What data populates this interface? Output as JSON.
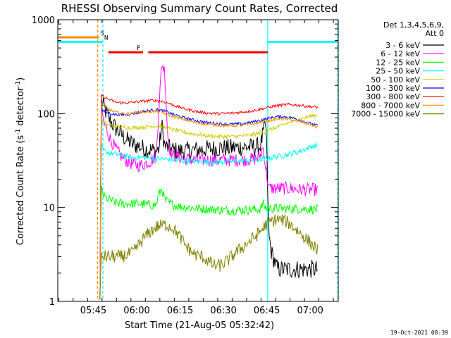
{
  "chart_data": {
    "type": "line",
    "title": "RHESSI Observing Summary Count Rates, Corrected",
    "xlabel": "Start Time (21-Aug-05 05:32:42)",
    "ylabel_main": "Corrected Count Rate (s",
    "ylabel_sup1": "-1",
    "ylabel_mid": " detector",
    "ylabel_sup2": "-1",
    "ylabel_end": ")",
    "yscale": "log",
    "ylim": [
      1,
      1000
    ],
    "xlim_minutes": [
      0,
      97
    ],
    "x_ticks": [
      {
        "label": "05:45",
        "min": 12.3
      },
      {
        "label": "06:00",
        "min": 27.3
      },
      {
        "label": "06:15",
        "min": 42.3
      },
      {
        "label": "06:30",
        "min": 57.3
      },
      {
        "label": "06:45",
        "min": 72.3
      },
      {
        "label": "07:00",
        "min": 87.3
      }
    ],
    "y_ticks": [
      {
        "label": "1",
        "value": 1
      },
      {
        "label": "10",
        "value": 10
      },
      {
        "label": "100",
        "value": 100
      },
      {
        "label": "1000",
        "value": 1000
      }
    ],
    "legend": {
      "header1": "Det 1,3,4,5,6,9,",
      "header2": "Att 0",
      "placement": "right"
    },
    "series": [
      {
        "name": "3 - 6 keV",
        "color": "#000000",
        "points": [
          [
            14.6,
            1.05
          ],
          [
            15,
            140
          ],
          [
            16,
            115
          ],
          [
            18,
            85
          ],
          [
            20,
            70
          ],
          [
            22,
            60
          ],
          [
            24,
            52
          ],
          [
            26,
            47
          ],
          [
            28,
            45
          ],
          [
            30,
            42
          ],
          [
            32,
            41
          ],
          [
            34,
            40
          ],
          [
            35,
            42
          ],
          [
            36,
            75
          ],
          [
            37,
            45
          ],
          [
            39,
            42
          ],
          [
            41,
            40
          ],
          [
            44,
            40
          ],
          [
            48,
            41
          ],
          [
            52,
            42
          ],
          [
            56,
            43
          ],
          [
            60,
            43
          ],
          [
            64,
            44
          ],
          [
            68,
            44
          ],
          [
            70,
            45
          ],
          [
            71,
            60
          ],
          [
            72,
            80
          ],
          [
            73,
            5
          ],
          [
            74,
            3.2
          ],
          [
            76,
            2.2
          ],
          [
            80,
            2.2
          ],
          [
            86,
            2.2
          ],
          [
            90,
            2.2
          ]
        ]
      },
      {
        "name": "6 - 12 keV",
        "color": "#ff00ff",
        "points": [
          [
            14.6,
            1.05
          ],
          [
            15,
            120
          ],
          [
            16,
            80
          ],
          [
            18,
            55
          ],
          [
            20,
            42
          ],
          [
            22,
            35
          ],
          [
            24,
            31
          ],
          [
            26,
            29
          ],
          [
            28,
            28
          ],
          [
            30,
            29
          ],
          [
            32,
            31
          ],
          [
            34,
            35
          ],
          [
            35,
            120
          ],
          [
            36,
            350
          ],
          [
            37,
            280
          ],
          [
            38,
            60
          ],
          [
            39,
            38
          ],
          [
            41,
            35
          ],
          [
            44,
            33
          ],
          [
            48,
            32
          ],
          [
            52,
            32
          ],
          [
            56,
            32
          ],
          [
            60,
            32
          ],
          [
            64,
            32
          ],
          [
            68,
            33
          ],
          [
            70,
            35
          ],
          [
            71,
            45
          ],
          [
            72,
            25
          ],
          [
            73,
            16
          ],
          [
            76,
            16
          ],
          [
            80,
            16
          ],
          [
            84,
            15.5
          ],
          [
            88,
            15.5
          ],
          [
            90,
            15.5
          ]
        ]
      },
      {
        "name": "12 - 25 keV",
        "color": "#00ff00",
        "points": [
          [
            14.6,
            1.05
          ],
          [
            15,
            16
          ],
          [
            16,
            13
          ],
          [
            18,
            12
          ],
          [
            20,
            11.2
          ],
          [
            22,
            11
          ],
          [
            24,
            11
          ],
          [
            26,
            11
          ],
          [
            28,
            11
          ],
          [
            30,
            10.8
          ],
          [
            32,
            10.6
          ],
          [
            34,
            10.6
          ],
          [
            35,
            14
          ],
          [
            36,
            16
          ],
          [
            37,
            12
          ],
          [
            39,
            11
          ],
          [
            41,
            10.4
          ],
          [
            44,
            10.1
          ],
          [
            48,
            9.8
          ],
          [
            52,
            9.6
          ],
          [
            56,
            9.4
          ],
          [
            60,
            9.3
          ],
          [
            64,
            9.4
          ],
          [
            68,
            9.5
          ],
          [
            70,
            9.6
          ],
          [
            71,
            11
          ],
          [
            72,
            9.8
          ],
          [
            76,
            9.8
          ],
          [
            80,
            9.7
          ],
          [
            84,
            9.7
          ],
          [
            88,
            9.6
          ],
          [
            90,
            9.6
          ]
        ]
      },
      {
        "name": "25 - 50 keV",
        "color": "#00ffff",
        "points": [
          [
            14.6,
            1.05
          ],
          [
            15,
            45
          ],
          [
            16,
            40
          ],
          [
            18,
            38
          ],
          [
            20,
            37
          ],
          [
            22,
            36
          ],
          [
            24,
            35
          ],
          [
            26,
            34
          ],
          [
            28,
            34
          ],
          [
            30,
            34
          ],
          [
            32,
            33.5
          ],
          [
            34,
            33
          ],
          [
            36,
            33
          ],
          [
            38,
            32.5
          ],
          [
            40,
            32
          ],
          [
            44,
            31.5
          ],
          [
            48,
            31
          ],
          [
            52,
            30.5
          ],
          [
            56,
            30.5
          ],
          [
            60,
            31
          ],
          [
            64,
            31.5
          ],
          [
            68,
            32
          ],
          [
            72,
            33
          ],
          [
            76,
            35
          ],
          [
            80,
            37
          ],
          [
            84,
            40
          ],
          [
            88,
            45
          ],
          [
            90,
            46
          ]
        ]
      },
      {
        "name": "50 - 100 keV",
        "color": "#cccc00",
        "points": [
          [
            14.6,
            1.05
          ],
          [
            15,
            85
          ],
          [
            16,
            80
          ],
          [
            18,
            76
          ],
          [
            20,
            74
          ],
          [
            22,
            72
          ],
          [
            24,
            71
          ],
          [
            26,
            71
          ],
          [
            28,
            71
          ],
          [
            30,
            72
          ],
          [
            32,
            73
          ],
          [
            34,
            74
          ],
          [
            36,
            73
          ],
          [
            38,
            70
          ],
          [
            40,
            67
          ],
          [
            44,
            63
          ],
          [
            48,
            60
          ],
          [
            52,
            58
          ],
          [
            56,
            57
          ],
          [
            60,
            57
          ],
          [
            64,
            58
          ],
          [
            68,
            60
          ],
          [
            72,
            65
          ],
          [
            76,
            72
          ],
          [
            80,
            80
          ],
          [
            84,
            88
          ],
          [
            88,
            95
          ],
          [
            90,
            97
          ]
        ]
      },
      {
        "name": "100 - 300 keV",
        "color": "#0000ff",
        "points": [
          [
            14.6,
            1.05
          ],
          [
            15,
            110
          ],
          [
            16,
            105
          ],
          [
            18,
            100
          ],
          [
            20,
            98
          ],
          [
            22,
            97
          ],
          [
            24,
            98
          ],
          [
            26,
            100
          ],
          [
            28,
            103
          ],
          [
            30,
            106
          ],
          [
            32,
            108
          ],
          [
            34,
            110
          ],
          [
            36,
            108
          ],
          [
            38,
            104
          ],
          [
            40,
            98
          ],
          [
            44,
            90
          ],
          [
            48,
            84
          ],
          [
            52,
            80
          ],
          [
            56,
            78
          ],
          [
            60,
            77
          ],
          [
            64,
            78
          ],
          [
            68,
            82
          ],
          [
            72,
            88
          ],
          [
            76,
            93
          ],
          [
            80,
            92
          ],
          [
            84,
            85
          ],
          [
            88,
            77
          ],
          [
            90,
            74
          ]
        ]
      },
      {
        "name": "300 - 800 keV",
        "color": "#ff0000",
        "points": [
          [
            14.6,
            1.05
          ],
          [
            15,
            160
          ],
          [
            16,
            150
          ],
          [
            18,
            140
          ],
          [
            20,
            133
          ],
          [
            22,
            130
          ],
          [
            24,
            130
          ],
          [
            26,
            132
          ],
          [
            28,
            134
          ],
          [
            30,
            136
          ],
          [
            32,
            138
          ],
          [
            34,
            138
          ],
          [
            36,
            135
          ],
          [
            38,
            130
          ],
          [
            40,
            123
          ],
          [
            44,
            112
          ],
          [
            48,
            105
          ],
          [
            52,
            101
          ],
          [
            56,
            100
          ],
          [
            60,
            101
          ],
          [
            64,
            104
          ],
          [
            68,
            108
          ],
          [
            72,
            115
          ],
          [
            76,
            122
          ],
          [
            80,
            125
          ],
          [
            84,
            122
          ],
          [
            88,
            118
          ],
          [
            90,
            117
          ]
        ]
      },
      {
        "name": "800 - 7000 keV",
        "color": "#ff8c00",
        "points": [
          [
            14.6,
            1.05
          ],
          [
            15,
            130
          ],
          [
            16,
            120
          ],
          [
            18,
            110
          ],
          [
            20,
            103
          ],
          [
            22,
            100
          ],
          [
            24,
            100
          ],
          [
            26,
            101
          ],
          [
            28,
            103
          ],
          [
            30,
            104
          ],
          [
            32,
            105
          ],
          [
            34,
            105
          ],
          [
            36,
            103
          ],
          [
            38,
            98
          ],
          [
            40,
            93
          ],
          [
            44,
            86
          ],
          [
            48,
            80
          ],
          [
            52,
            77
          ],
          [
            56,
            75
          ],
          [
            60,
            74
          ],
          [
            64,
            75
          ],
          [
            68,
            78
          ],
          [
            72,
            83
          ],
          [
            76,
            88
          ],
          [
            80,
            87
          ],
          [
            84,
            82
          ],
          [
            88,
            75
          ],
          [
            90,
            71
          ]
        ]
      },
      {
        "name": "7000 - 15000 keV",
        "color": "#808000",
        "points": [
          [
            14.6,
            1.05
          ],
          [
            15,
            3.0
          ],
          [
            18,
            3.0
          ],
          [
            22,
            3.0
          ],
          [
            26,
            3.3
          ],
          [
            28,
            4.0
          ],
          [
            30,
            4.8
          ],
          [
            32,
            5.5
          ],
          [
            34,
            6.2
          ],
          [
            36,
            6.5
          ],
          [
            38,
            6.5
          ],
          [
            40,
            6.0
          ],
          [
            42,
            5.0
          ],
          [
            44,
            4.0
          ],
          [
            46,
            3.4
          ],
          [
            48,
            3.1
          ],
          [
            50,
            3.0
          ],
          [
            52,
            2.7
          ],
          [
            54,
            2.4
          ],
          [
            56,
            2.4
          ],
          [
            58,
            2.6
          ],
          [
            60,
            3.0
          ],
          [
            62,
            3.4
          ],
          [
            64,
            3.8
          ],
          [
            66,
            4.3
          ],
          [
            68,
            4.8
          ],
          [
            70,
            5.5
          ],
          [
            72,
            6.6
          ],
          [
            74,
            7.2
          ],
          [
            76,
            7.5
          ],
          [
            78,
            7.3
          ],
          [
            80,
            6.8
          ],
          [
            82,
            6.0
          ],
          [
            84,
            5.3
          ],
          [
            86,
            4.6
          ],
          [
            88,
            4.0
          ],
          [
            90,
            3.5
          ]
        ]
      }
    ],
    "flags": [
      {
        "label": "S",
        "color": "#ff8c00",
        "value": 650,
        "spans": [
          [
            0,
            14.3
          ]
        ]
      },
      {
        "label": "N",
        "color": "#00ffff",
        "value": 580,
        "spans": [
          [
            0,
            15.6
          ],
          [
            72.6,
            96.8
          ]
        ]
      },
      {
        "label": "F",
        "color": "#ff0000",
        "value": 450,
        "spans": [
          [
            17.5,
            29.5
          ],
          [
            31.3,
            72.6
          ]
        ]
      }
    ],
    "vlines": [
      {
        "min": 13.8,
        "color": "#ff8c00",
        "dashed": true
      },
      {
        "min": 15.6,
        "color": "#00ffff",
        "dashed": true
      },
      {
        "min": 72.6,
        "color": "#00ffff",
        "dashed": false
      },
      {
        "min": 96.8,
        "color": "#00ffff",
        "dashed": true
      }
    ],
    "footer": "19-Oct-2021 08:39"
  }
}
